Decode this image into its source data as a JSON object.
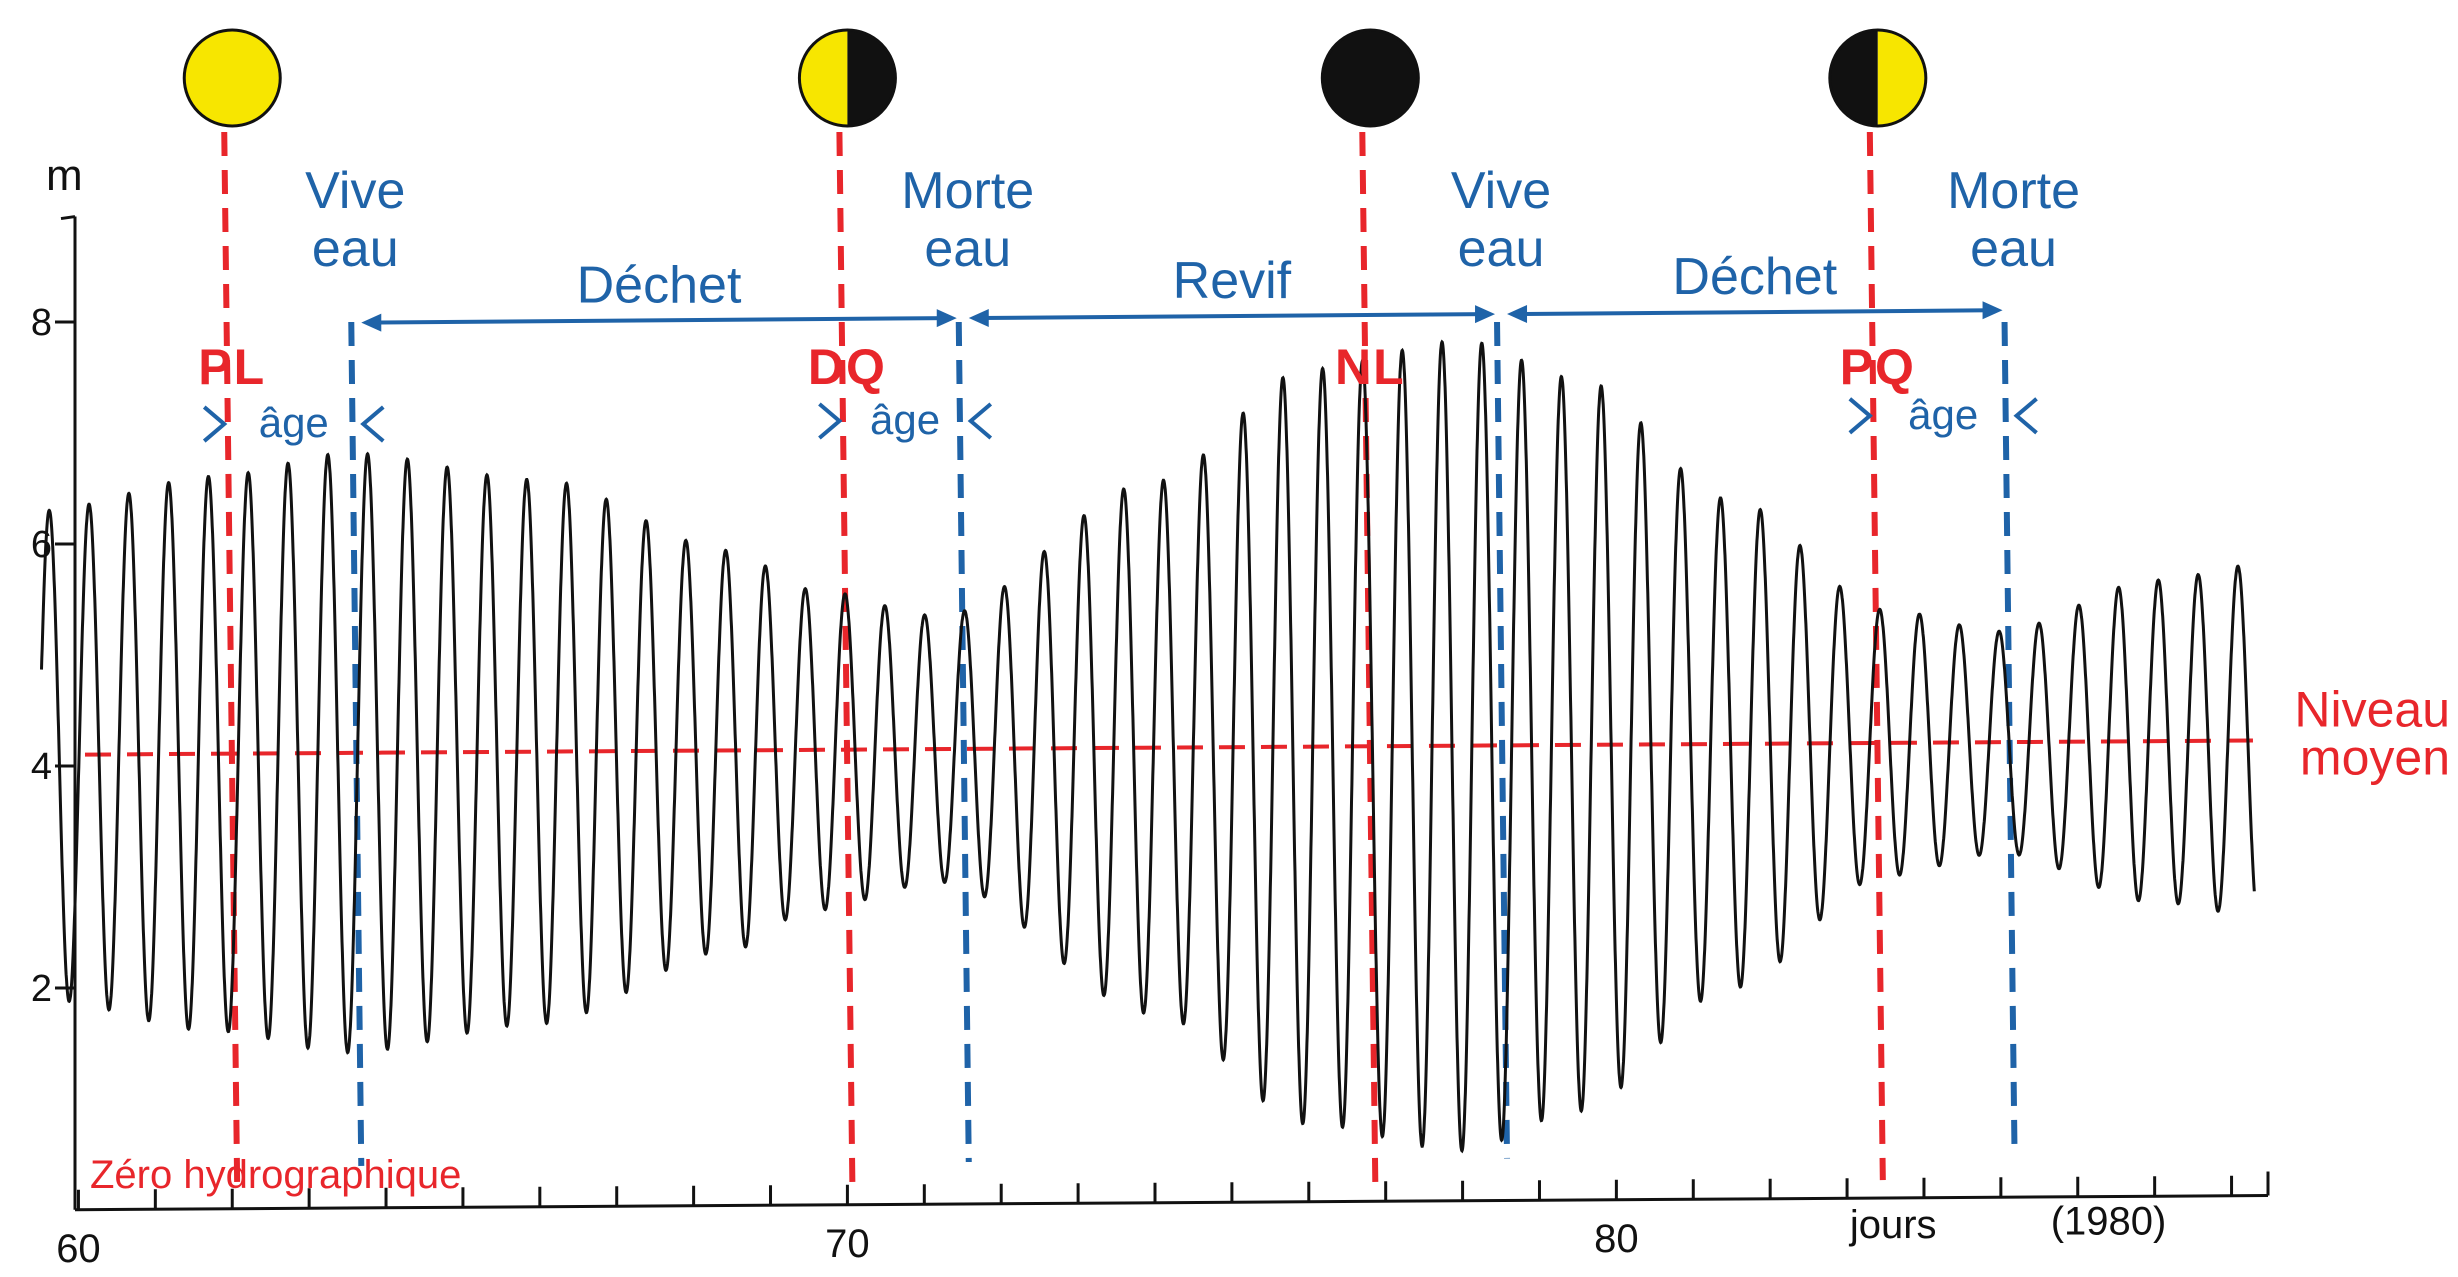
{
  "colors": {
    "red": "#e8262b",
    "blue": "#1f63a8",
    "curve": "#111111",
    "moon_yellow": "#f7e600",
    "moon_dark": "#111111"
  },
  "chart_data": {
    "type": "line",
    "ylabel": "m",
    "xlabel": "jours",
    "year_label": "(1980)",
    "ylim": [
      0,
      9
    ],
    "xlim": [
      59.5,
      88.5
    ],
    "y_ticks": [
      2,
      4,
      6,
      8
    ],
    "y_tick_labels": [
      "2",
      "4",
      "6",
      "8"
    ],
    "x_ticks_labeled": [
      60,
      70,
      80
    ],
    "x_tick_labels": [
      "60",
      "70",
      "80"
    ],
    "mean_level": {
      "value": 4.1,
      "label_line1": "Niveau",
      "label_line2": "moyen"
    },
    "zero_label": "Zéro  hydrographique",
    "semidiurnal_period_days": 0.5175,
    "tide_amplitude": {
      "days": [
        59.5,
        61.8,
        63.5,
        66.0,
        68.5,
        69.5,
        71.2,
        74.0,
        76.0,
        78.0,
        79.5,
        81.5,
        83.5,
        85.0,
        87.0,
        88.5
      ],
      "amplitude_m": [
        2.2,
        2.5,
        2.7,
        2.45,
        1.8,
        1.45,
        1.2,
        2.4,
        3.4,
        3.65,
        3.3,
        2.2,
        1.2,
        1.0,
        1.45,
        1.6
      ]
    },
    "moon_phases": [
      {
        "day": 62.0,
        "label": "PL",
        "phase": "full"
      },
      {
        "day": 70.0,
        "label": "DQ",
        "phase": "last-quarter"
      },
      {
        "day": 76.8,
        "label": "NL",
        "phase": "new"
      },
      {
        "day": 83.4,
        "label": "PQ",
        "phase": "first-quarter"
      }
    ],
    "tide_events": [
      {
        "day": 63.6,
        "label_line1": "Vive",
        "label_line2": "eau"
      },
      {
        "day": 71.5,
        "label_line1": "Morte",
        "label_line2": "eau"
      },
      {
        "day": 78.5,
        "label_line1": "Vive",
        "label_line2": "eau"
      },
      {
        "day": 85.1,
        "label_line1": "Morte",
        "label_line2": "eau"
      }
    ],
    "periods": [
      {
        "from": 63.6,
        "to": 71.5,
        "label": "Déchet"
      },
      {
        "from": 71.5,
        "to": 78.5,
        "label": "Revif"
      },
      {
        "from": 78.5,
        "to": 85.1,
        "label": "Déchet"
      }
    ],
    "age_intervals": [
      {
        "from": 62.0,
        "to": 63.6,
        "label": "âge"
      },
      {
        "from": 70.0,
        "to": 71.5,
        "label": "âge"
      },
      {
        "from": 83.4,
        "to": 85.1,
        "label": "âge"
      }
    ]
  }
}
